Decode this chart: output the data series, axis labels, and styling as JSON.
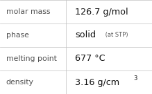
{
  "rows": [
    {
      "label": "molar mass",
      "value": "126.7 g/mol",
      "type": "plain"
    },
    {
      "label": "phase",
      "value": "solid",
      "type": "suffix",
      "suffix": " (at STP)"
    },
    {
      "label": "melting point",
      "value": "677 °C",
      "type": "plain"
    },
    {
      "label": "density",
      "value": "3.16 g/cm",
      "type": "super",
      "superscript": "3"
    }
  ],
  "col_split": 0.435,
  "background_color": "#ffffff",
  "border_color": "#c0c0c0",
  "label_fontsize": 7.8,
  "value_fontsize": 9.2,
  "suffix_fontsize": 6.0,
  "super_fontsize": 6.0,
  "label_color": "#505050",
  "value_color": "#111111",
  "suffix_color": "#555555",
  "figsize": [
    2.19,
    1.36
  ],
  "dpi": 100
}
